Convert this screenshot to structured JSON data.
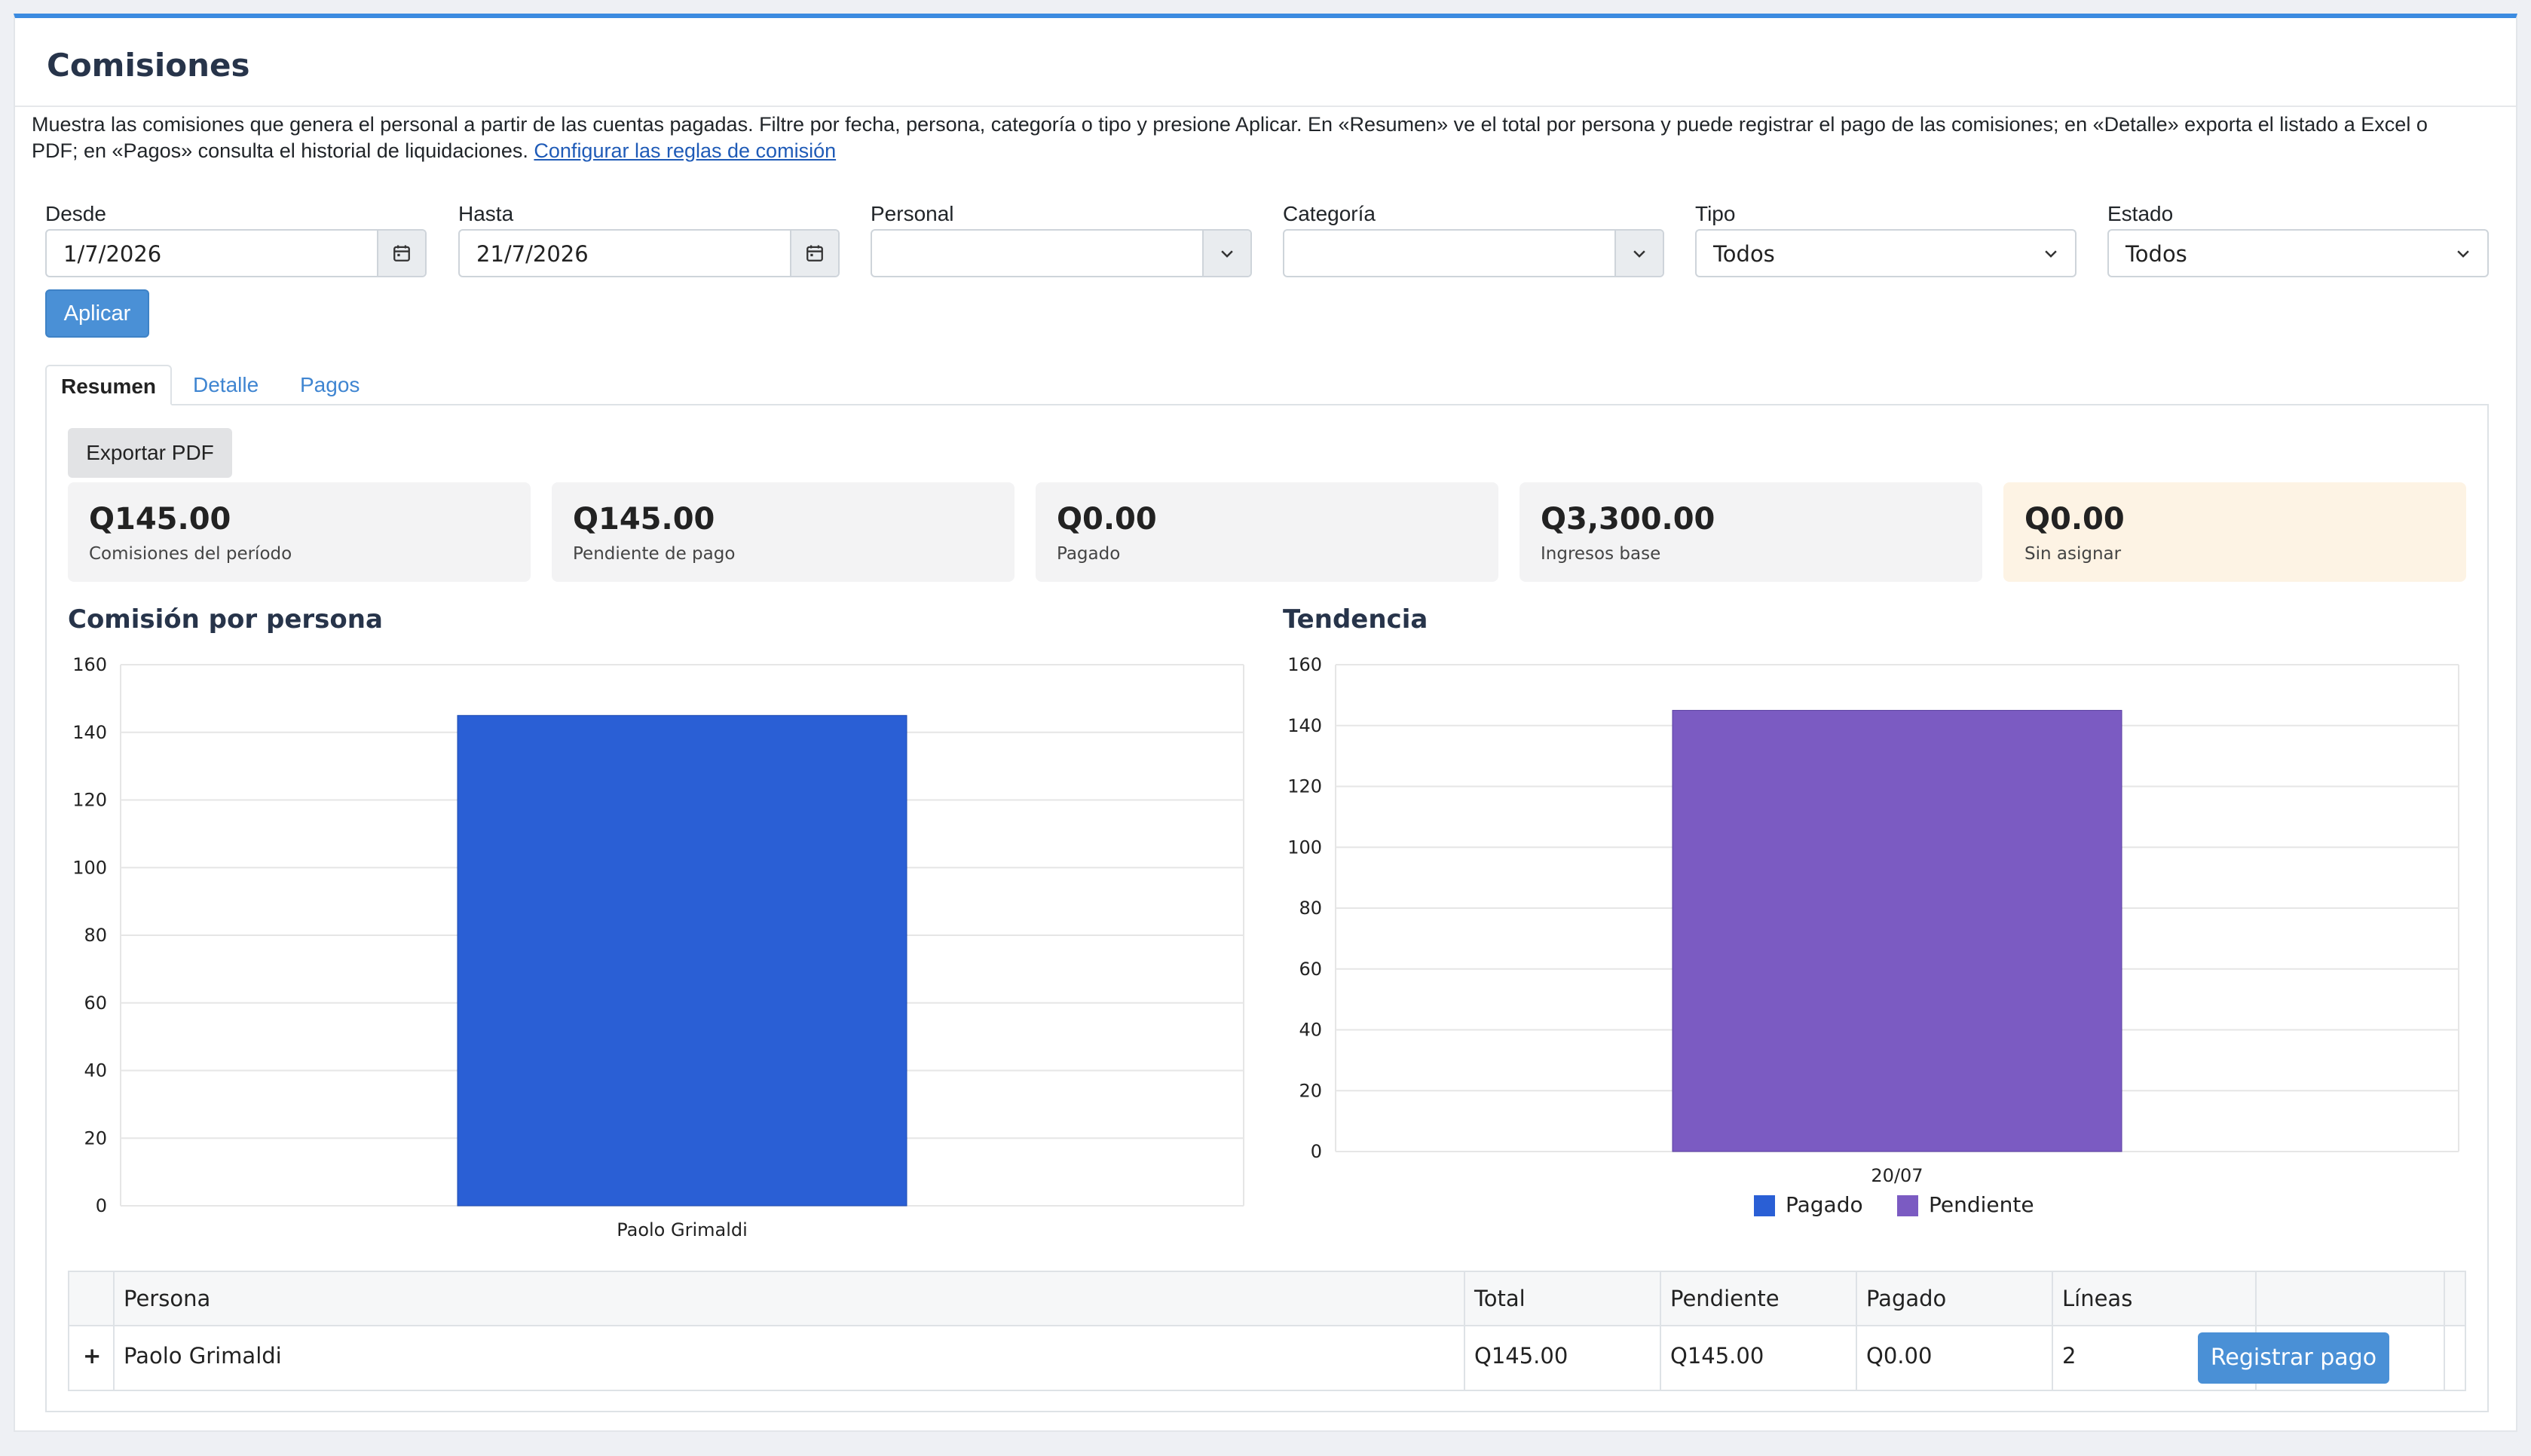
{
  "header": {
    "title": "Comisiones"
  },
  "description": {
    "text": "Muestra las comisiones que genera el personal a partir de las cuentas pagadas. Filtre por fecha, persona, categoría o tipo y presione Aplicar. En «Resumen» ve el total por persona y puede registrar el pago de las comisiones; en «Detalle» exporta el listado a Excel o PDF; en «Pagos» consulta el historial de liquidaciones.",
    "link": "Configurar las reglas de comisión"
  },
  "filters": {
    "desde": {
      "label": "Desde",
      "value": "1/7/2026"
    },
    "hasta": {
      "label": "Hasta",
      "value": "21/7/2026"
    },
    "personal": {
      "label": "Personal",
      "value": ""
    },
    "categoria": {
      "label": "Categoría",
      "value": ""
    },
    "tipo": {
      "label": "Tipo",
      "value": "Todos"
    },
    "estado": {
      "label": "Estado",
      "value": "Todos"
    },
    "apply_label": "Aplicar"
  },
  "tabs": [
    {
      "label": "Resumen",
      "active": true
    },
    {
      "label": "Detalle",
      "active": false
    },
    {
      "label": "Pagos",
      "active": false
    }
  ],
  "export_label": "Exportar PDF",
  "kpis": [
    {
      "value": "Q145.00",
      "label": "Comisiones del período"
    },
    {
      "value": "Q145.00",
      "label": "Pendiente de pago"
    },
    {
      "value": "Q0.00",
      "label": "Pagado"
    },
    {
      "value": "Q3,300.00",
      "label": "Ingresos base"
    },
    {
      "value": "Q0.00",
      "label": "Sin asignar"
    }
  ],
  "chart_data": [
    {
      "type": "bar",
      "title": "Comisión por persona",
      "categories": [
        "Paolo Grimaldi"
      ],
      "values": [
        145
      ],
      "ylim": [
        0,
        160
      ],
      "yticks": [
        0,
        20,
        40,
        60,
        80,
        100,
        120,
        140,
        160
      ],
      "color": "#2a5fd5",
      "grid": true
    },
    {
      "type": "bar",
      "title": "Tendencia",
      "stacked": true,
      "categories": [
        "20/07"
      ],
      "series": [
        {
          "name": "Pagado",
          "values": [
            0
          ],
          "color": "#2a5fd5"
        },
        {
          "name": "Pendiente",
          "values": [
            145
          ],
          "color": "#7b5bc2"
        }
      ],
      "ylim": [
        0,
        160
      ],
      "yticks": [
        0,
        20,
        40,
        60,
        80,
        100,
        120,
        140,
        160
      ],
      "legend": "bottom",
      "grid": true
    }
  ],
  "table": {
    "columns": [
      "Persona",
      "Total",
      "Pendiente",
      "Pagado",
      "Líneas"
    ],
    "rows": [
      {
        "expand": "+",
        "persona": "Paolo Grimaldi",
        "total": "Q145.00",
        "pendiente": "Q145.00",
        "pagado": "Q0.00",
        "lineas": "2",
        "action": "Registrar pago"
      }
    ]
  }
}
